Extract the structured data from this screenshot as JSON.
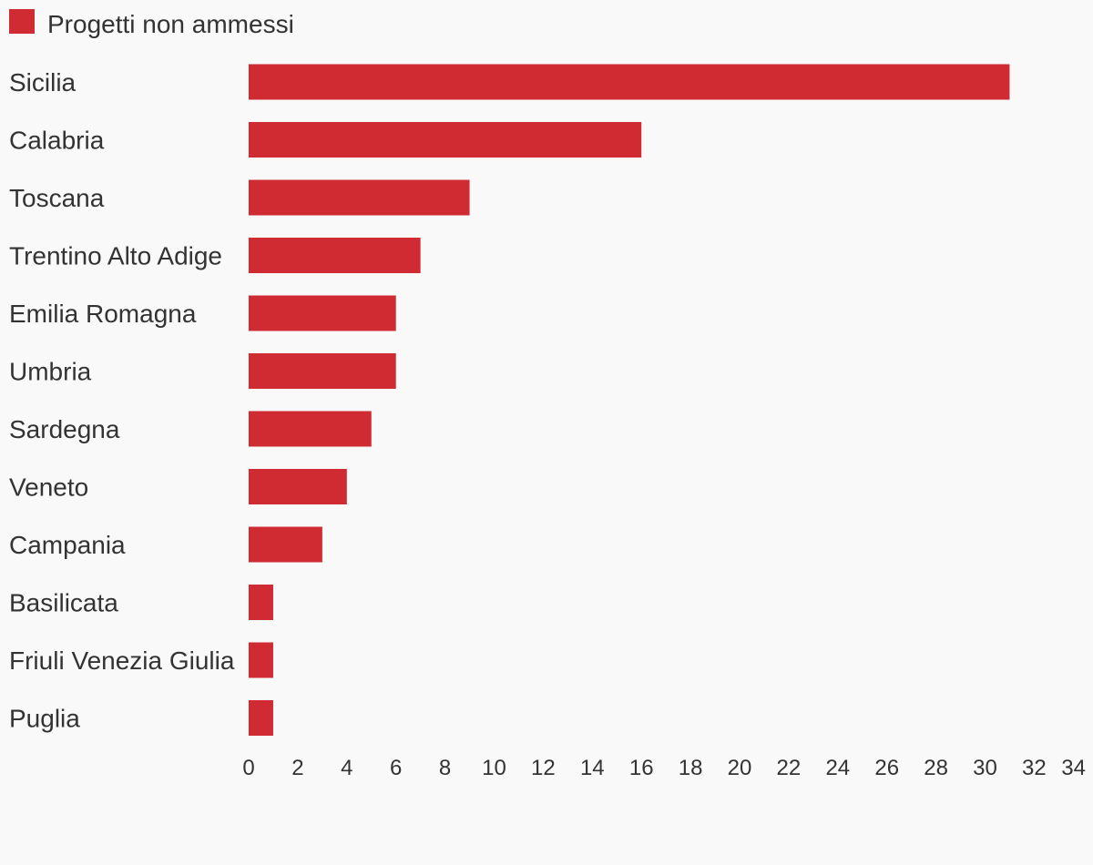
{
  "chart_data": {
    "type": "bar",
    "orientation": "horizontal",
    "categories": [
      "Sicilia",
      "Calabria",
      "Toscana",
      "Trentino Alto Adige",
      "Emilia Romagna",
      "Umbria",
      "Sardegna",
      "Veneto",
      "Campania",
      "Basilicata",
      "Friuli Venezia Giulia",
      "Puglia"
    ],
    "series": [
      {
        "name": "Progetti non ammessi",
        "color": "#d02a32",
        "values": [
          31,
          16,
          9,
          7,
          6,
          6,
          5,
          4,
          3,
          1,
          1,
          1
        ]
      }
    ],
    "xlim": [
      0,
      34
    ],
    "xticks": [
      0,
      2,
      4,
      6,
      8,
      10,
      12,
      14,
      16,
      18,
      20,
      22,
      24,
      26,
      28,
      30,
      32,
      34
    ],
    "legend": "top-left",
    "grid": false
  }
}
